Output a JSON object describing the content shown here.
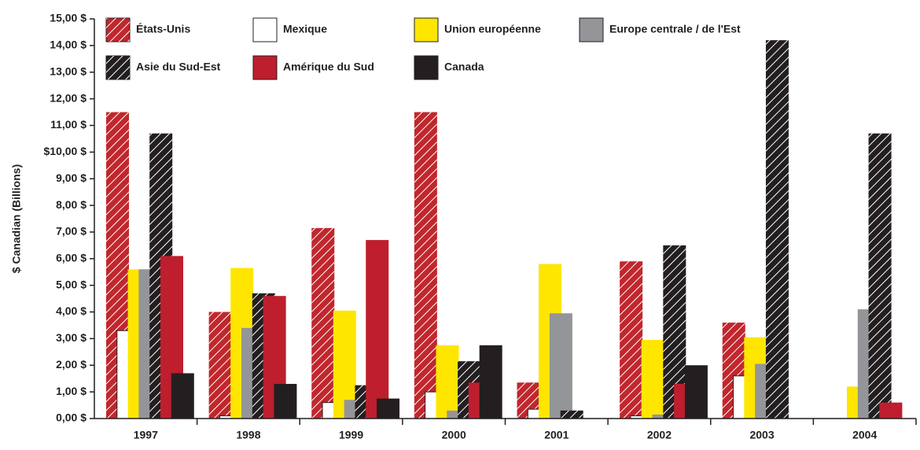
{
  "chart_data": {
    "type": "bar",
    "y_label": "$ Canadian (Billions)",
    "categories": [
      "1997",
      "1998",
      "1999",
      "2000",
      "2001",
      "2002",
      "2003",
      "2004"
    ],
    "series": [
      {
        "name": "États-Unis",
        "color": "#c1272d",
        "hatch": true,
        "values": [
          11.5,
          4.0,
          7.15,
          11.5,
          1.35,
          5.9,
          3.6,
          0
        ]
      },
      {
        "name": "Mexique",
        "color": "#ffffff",
        "hatch": false,
        "values": [
          3.3,
          0.1,
          0.6,
          1.0,
          0.35,
          0.1,
          1.6,
          0
        ]
      },
      {
        "name": "Union européenne",
        "color": "#ffe600",
        "hatch": false,
        "values": [
          5.6,
          5.65,
          4.05,
          2.75,
          5.8,
          2.95,
          3.05,
          1.2
        ]
      },
      {
        "name": "Europe centrale / de l'Est",
        "color": "#939598",
        "hatch": false,
        "values": [
          5.6,
          3.4,
          0.7,
          0.3,
          3.95,
          0.15,
          2.05,
          4.1
        ]
      },
      {
        "name": "Asie du Sud-Est",
        "color": "#231f20",
        "hatch": true,
        "values": [
          10.7,
          4.7,
          1.25,
          2.15,
          0.3,
          6.5,
          14.2,
          10.7
        ]
      },
      {
        "name": "Amérique du Sud",
        "color": "#be1e2d",
        "hatch": false,
        "values": [
          6.1,
          4.6,
          6.7,
          1.35,
          0,
          1.3,
          0,
          0.6
        ]
      },
      {
        "name": "Canada",
        "color": "#231f20",
        "hatch": false,
        "values": [
          1.7,
          1.3,
          0.75,
          2.75,
          0,
          2.0,
          0,
          0
        ]
      }
    ],
    "ylim": [
      0,
      15
    ],
    "yticks": [
      {
        "value": 0,
        "label": "0,00 $"
      },
      {
        "value": 1,
        "label": "1,00 $"
      },
      {
        "value": 2,
        "label": "2,00 $"
      },
      {
        "value": 3,
        "label": "3,00 $"
      },
      {
        "value": 4,
        "label": "4,00 $"
      },
      {
        "value": 5,
        "label": "5,00 $"
      },
      {
        "value": 6,
        "label": "6,00 $"
      },
      {
        "value": 7,
        "label": "7,00 $"
      },
      {
        "value": 8,
        "label": "8,00 $"
      },
      {
        "value": 9,
        "label": "9,00 $"
      },
      {
        "value": 10,
        "label": "$10,00 $"
      },
      {
        "value": 11,
        "label": "11,00 $"
      },
      {
        "value": 12,
        "label": "12,00 $"
      },
      {
        "value": 13,
        "label": "13,00 $"
      },
      {
        "value": 14,
        "label": "14,00 $"
      },
      {
        "value": 15,
        "label": "15,00 $"
      }
    ],
    "grid": false,
    "legend": "top"
  }
}
